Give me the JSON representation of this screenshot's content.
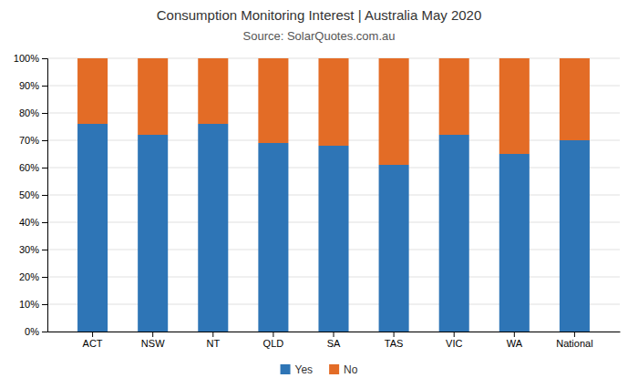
{
  "chart_data": {
    "type": "bar",
    "stacked": true,
    "title": "Consumption Monitoring Interest | Australia May 2020",
    "subtitle": "Source: SolarQuotes.com.au",
    "categories": [
      "ACT",
      "NSW",
      "NT",
      "QLD",
      "SA",
      "TAS",
      "VIC",
      "WA",
      "National"
    ],
    "series": [
      {
        "name": "Yes",
        "color": "#2E75B6",
        "values": [
          76,
          72,
          76,
          69,
          68,
          61,
          72,
          65,
          70
        ]
      },
      {
        "name": "No",
        "color": "#E36C26",
        "values": [
          24,
          28,
          24,
          31,
          32,
          39,
          28,
          35,
          30
        ]
      }
    ],
    "ylim": [
      0,
      100
    ],
    "yticks": [
      {
        "value": 0,
        "label": "0%"
      },
      {
        "value": 10,
        "label": "10%"
      },
      {
        "value": 20,
        "label": "20%"
      },
      {
        "value": 30,
        "label": "30%"
      },
      {
        "value": 40,
        "label": "40%"
      },
      {
        "value": 50,
        "label": "50%"
      },
      {
        "value": 60,
        "label": "60%"
      },
      {
        "value": 70,
        "label": "70%"
      },
      {
        "value": 80,
        "label": "80%"
      },
      {
        "value": 90,
        "label": "90%"
      },
      {
        "value": 100,
        "label": "100%"
      }
    ],
    "grid": true,
    "legend": "bottom"
  }
}
